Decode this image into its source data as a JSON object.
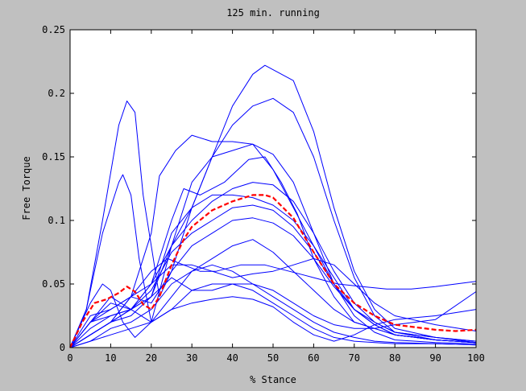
{
  "figure": {
    "background": "#c0c0c0",
    "axes_background": "#ffffff"
  },
  "chart_data": {
    "type": "line",
    "title": "125 min. running",
    "xlabel": "% Stance",
    "ylabel": "Free Torque",
    "xlim": [
      0,
      100
    ],
    "ylim": [
      0,
      0.25
    ],
    "xticks": [
      0,
      10,
      20,
      30,
      40,
      50,
      60,
      70,
      80,
      90,
      100
    ],
    "xtick_labels": [
      "0",
      "10",
      "20",
      "30",
      "40",
      "50",
      "60",
      "70",
      "80",
      "90",
      "100"
    ],
    "yticks": [
      0,
      0.05,
      0.1,
      0.15,
      0.2,
      0.25
    ],
    "ytick_labels": [
      "0",
      "0.05",
      "0.1",
      "0.15",
      "0.2",
      "0.25"
    ],
    "grid": false,
    "legend": false,
    "trial_color": "#0000ff",
    "mean_color": "#ff0000",
    "series": [
      {
        "style": "solid",
        "x": [
          0,
          5,
          10,
          15,
          20,
          25,
          30,
          35,
          40,
          45,
          48,
          55,
          60,
          65,
          70,
          75,
          80,
          90,
          100
        ],
        "y": [
          0,
          0.01,
          0.02,
          0.03,
          0.04,
          0.08,
          0.11,
          0.15,
          0.19,
          0.215,
          0.222,
          0.21,
          0.17,
          0.11,
          0.06,
          0.03,
          0.015,
          0.008,
          0.005
        ]
      },
      {
        "style": "solid",
        "x": [
          0,
          4,
          8,
          12,
          14,
          16,
          18,
          22,
          25,
          30,
          35,
          40,
          45,
          50,
          55,
          60,
          65,
          70,
          75,
          80,
          90,
          100
        ],
        "y": [
          0,
          0.03,
          0.1,
          0.175,
          0.194,
          0.185,
          0.12,
          0.04,
          0.06,
          0.11,
          0.15,
          0.175,
          0.19,
          0.196,
          0.185,
          0.15,
          0.1,
          0.055,
          0.025,
          0.012,
          0.008,
          0.004
        ]
      },
      {
        "style": "solid",
        "x": [
          0,
          4,
          8,
          12,
          13,
          15,
          17,
          20,
          25,
          30,
          35,
          40,
          45,
          50,
          55,
          60,
          65,
          70,
          75,
          80,
          90,
          100
        ],
        "y": [
          0,
          0.03,
          0.09,
          0.13,
          0.136,
          0.12,
          0.07,
          0.02,
          0.08,
          0.13,
          0.15,
          0.155,
          0.16,
          0.152,
          0.13,
          0.09,
          0.05,
          0.025,
          0.012,
          0.006,
          0.004,
          0.003
        ]
      },
      {
        "style": "solid",
        "x": [
          0,
          5,
          10,
          15,
          20,
          22,
          26,
          30,
          35,
          40,
          45,
          50,
          55,
          60,
          65,
          70,
          75,
          80,
          90,
          100
        ],
        "y": [
          0,
          0.01,
          0.02,
          0.04,
          0.09,
          0.135,
          0.155,
          0.167,
          0.162,
          0.162,
          0.16,
          0.14,
          0.11,
          0.08,
          0.05,
          0.03,
          0.02,
          0.012,
          0.008,
          0.005
        ]
      },
      {
        "style": "solid",
        "x": [
          0,
          5,
          10,
          15,
          20,
          25,
          28,
          32,
          38,
          44,
          48,
          52,
          56,
          60,
          65,
          70,
          80,
          90,
          100
        ],
        "y": [
          0,
          0.02,
          0.03,
          0.04,
          0.05,
          0.1,
          0.125,
          0.12,
          0.13,
          0.148,
          0.15,
          0.13,
          0.105,
          0.07,
          0.04,
          0.02,
          0.01,
          0.006,
          0.004
        ]
      },
      {
        "style": "solid",
        "x": [
          0,
          5,
          10,
          15,
          20,
          25,
          30,
          35,
          40,
          45,
          50,
          55,
          60,
          65,
          70,
          75,
          80,
          90,
          100
        ],
        "y": [
          0,
          0.015,
          0.025,
          0.03,
          0.05,
          0.08,
          0.1,
          0.115,
          0.125,
          0.13,
          0.128,
          0.115,
          0.09,
          0.06,
          0.035,
          0.02,
          0.012,
          0.006,
          0.004
        ]
      },
      {
        "style": "solid",
        "x": [
          0,
          5,
          10,
          15,
          20,
          25,
          30,
          35,
          40,
          45,
          50,
          55,
          60,
          65,
          70,
          75,
          80,
          90,
          100
        ],
        "y": [
          0,
          0.01,
          0.02,
          0.025,
          0.04,
          0.09,
          0.11,
          0.12,
          0.12,
          0.118,
          0.112,
          0.1,
          0.08,
          0.055,
          0.03,
          0.018,
          0.01,
          0.006,
          0.004
        ]
      },
      {
        "style": "solid",
        "x": [
          0,
          5,
          10,
          15,
          20,
          25,
          30,
          35,
          40,
          45,
          50,
          55,
          60,
          65,
          70,
          75,
          80,
          90,
          100
        ],
        "y": [
          0,
          0.02,
          0.035,
          0.03,
          0.045,
          0.075,
          0.09,
          0.1,
          0.11,
          0.112,
          0.108,
          0.095,
          0.075,
          0.05,
          0.03,
          0.018,
          0.01,
          0.006,
          0.004
        ]
      },
      {
        "style": "solid",
        "x": [
          0,
          5,
          10,
          15,
          20,
          25,
          30,
          35,
          40,
          45,
          50,
          55,
          60,
          65,
          70,
          75,
          80,
          90,
          100
        ],
        "y": [
          0,
          0.025,
          0.03,
          0.04,
          0.035,
          0.06,
          0.08,
          0.09,
          0.1,
          0.102,
          0.098,
          0.088,
          0.07,
          0.048,
          0.03,
          0.018,
          0.01,
          0.006,
          0.004
        ]
      },
      {
        "style": "solid",
        "x": [
          0,
          5,
          8,
          10,
          13,
          16,
          20,
          25,
          30,
          35,
          40,
          45,
          50,
          55,
          60,
          65,
          70,
          75,
          80,
          90,
          100
        ],
        "y": [
          0,
          0.035,
          0.05,
          0.045,
          0.02,
          0.008,
          0.02,
          0.04,
          0.06,
          0.07,
          0.08,
          0.085,
          0.075,
          0.06,
          0.045,
          0.03,
          0.02,
          0.015,
          0.01,
          0.006,
          0.004
        ]
      },
      {
        "style": "solid",
        "x": [
          0,
          5,
          10,
          15,
          20,
          25,
          30,
          35,
          40,
          45,
          50,
          55,
          60,
          65,
          70,
          75,
          80,
          90,
          100
        ],
        "y": [
          0,
          0.01,
          0.02,
          0.03,
          0.05,
          0.065,
          0.065,
          0.06,
          0.055,
          0.058,
          0.06,
          0.065,
          0.07,
          0.065,
          0.05,
          0.035,
          0.025,
          0.018,
          0.013
        ]
      },
      {
        "style": "solid",
        "x": [
          0,
          5,
          10,
          15,
          20,
          24,
          28,
          32,
          36,
          42,
          48,
          54,
          60,
          66,
          72,
          78,
          84,
          90,
          100
        ],
        "y": [
          0,
          0.01,
          0.02,
          0.04,
          0.06,
          0.07,
          0.065,
          0.06,
          0.06,
          0.065,
          0.065,
          0.06,
          0.055,
          0.05,
          0.048,
          0.046,
          0.046,
          0.048,
          0.052
        ]
      },
      {
        "style": "solid",
        "x": [
          0,
          5,
          10,
          15,
          20,
          25,
          30,
          35,
          40,
          45,
          50,
          55,
          60,
          65,
          70,
          75,
          80,
          90,
          100
        ],
        "y": [
          0,
          0.005,
          0.01,
          0.015,
          0.02,
          0.03,
          0.035,
          0.038,
          0.04,
          0.038,
          0.032,
          0.02,
          0.01,
          0.005,
          0.01,
          0.018,
          0.022,
          0.025,
          0.03
        ]
      },
      {
        "style": "solid",
        "x": [
          0,
          5,
          10,
          15,
          20,
          25,
          30,
          35,
          40,
          45,
          50,
          55,
          60,
          65,
          70,
          75,
          80,
          90,
          100
        ],
        "y": [
          0,
          0.02,
          0.025,
          0.03,
          0.04,
          0.055,
          0.045,
          0.045,
          0.05,
          0.05,
          0.045,
          0.035,
          0.025,
          0.018,
          0.015,
          0.015,
          0.018,
          0.022,
          0.044
        ]
      },
      {
        "style": "solid",
        "x": [
          0,
          5,
          10,
          15,
          20,
          25,
          30,
          35,
          40,
          45,
          50,
          55,
          60,
          65,
          70,
          75,
          80,
          90,
          100
        ],
        "y": [
          0,
          0.005,
          0.015,
          0.02,
          0.03,
          0.05,
          0.06,
          0.065,
          0.06,
          0.05,
          0.04,
          0.03,
          0.02,
          0.012,
          0.008,
          0.005,
          0.004,
          0.003,
          0.002
        ]
      },
      {
        "style": "solid",
        "x": [
          0,
          5,
          10,
          15,
          20,
          25,
          30,
          35,
          40,
          45,
          50,
          55,
          60,
          65,
          70,
          75,
          80,
          90,
          100
        ],
        "y": [
          0,
          0.02,
          0.04,
          0.03,
          0.02,
          0.03,
          0.045,
          0.05,
          0.05,
          0.045,
          0.035,
          0.025,
          0.015,
          0.008,
          0.005,
          0.004,
          0.003,
          0.003,
          0.002
        ]
      },
      {
        "style": "dashed",
        "x": [
          0,
          3,
          6,
          9,
          12,
          14,
          16,
          18,
          20,
          22,
          25,
          28,
          30,
          35,
          40,
          45,
          48,
          50,
          55,
          60,
          65,
          70,
          75,
          80,
          85,
          90,
          95,
          100
        ],
        "y": [
          0,
          0.02,
          0.035,
          0.038,
          0.043,
          0.048,
          0.044,
          0.034,
          0.03,
          0.04,
          0.065,
          0.085,
          0.095,
          0.108,
          0.115,
          0.12,
          0.12,
          0.118,
          0.102,
          0.075,
          0.05,
          0.035,
          0.025,
          0.018,
          0.016,
          0.014,
          0.013,
          0.014
        ]
      }
    ]
  }
}
